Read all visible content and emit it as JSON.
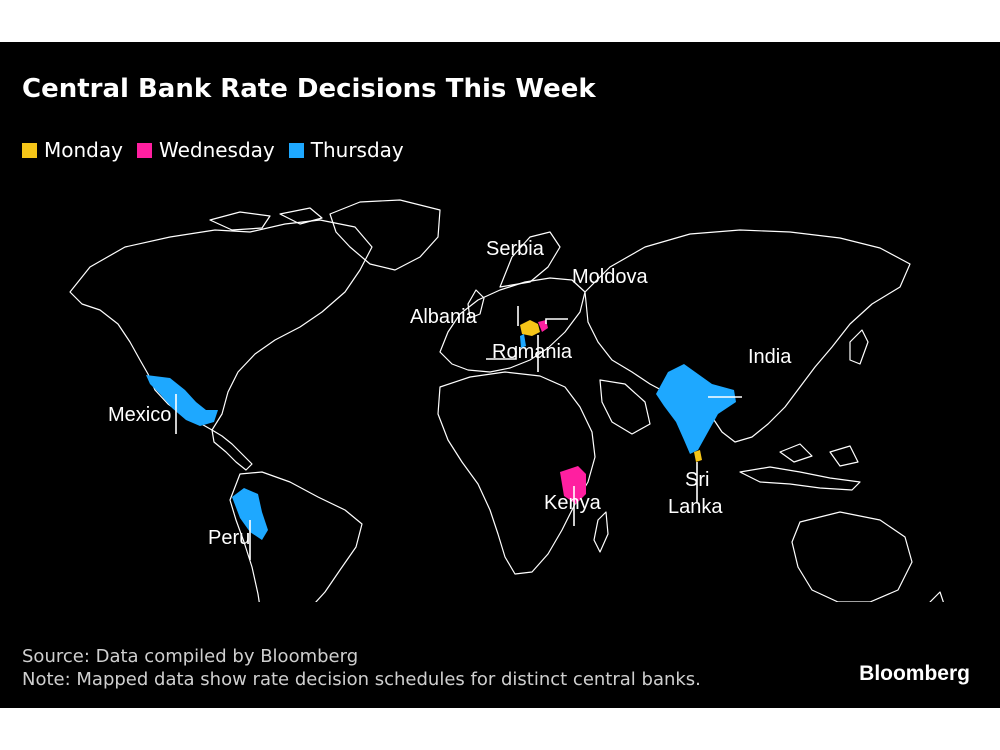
{
  "title": "Central Bank Rate Decisions This Week",
  "legend": [
    {
      "label": "Monday",
      "color": "#f5c518"
    },
    {
      "label": "Wednesday",
      "color": "#ff1fa0"
    },
    {
      "label": "Thursday",
      "color": "#1ea8ff"
    }
  ],
  "map_labels": {
    "serbia": "Serbia",
    "moldova": "Moldova",
    "albania": "Albania",
    "romania": "Romania",
    "india": "India",
    "mexico": "Mexico",
    "kenya": "Kenya",
    "sri": "Sri",
    "lanka": "Lanka",
    "peru": "Peru"
  },
  "footer": {
    "source": "Source: Data compiled by Bloomberg",
    "note": "Note: Mapped data show rate decision schedules for distinct central banks."
  },
  "brand": "Bloomberg"
}
